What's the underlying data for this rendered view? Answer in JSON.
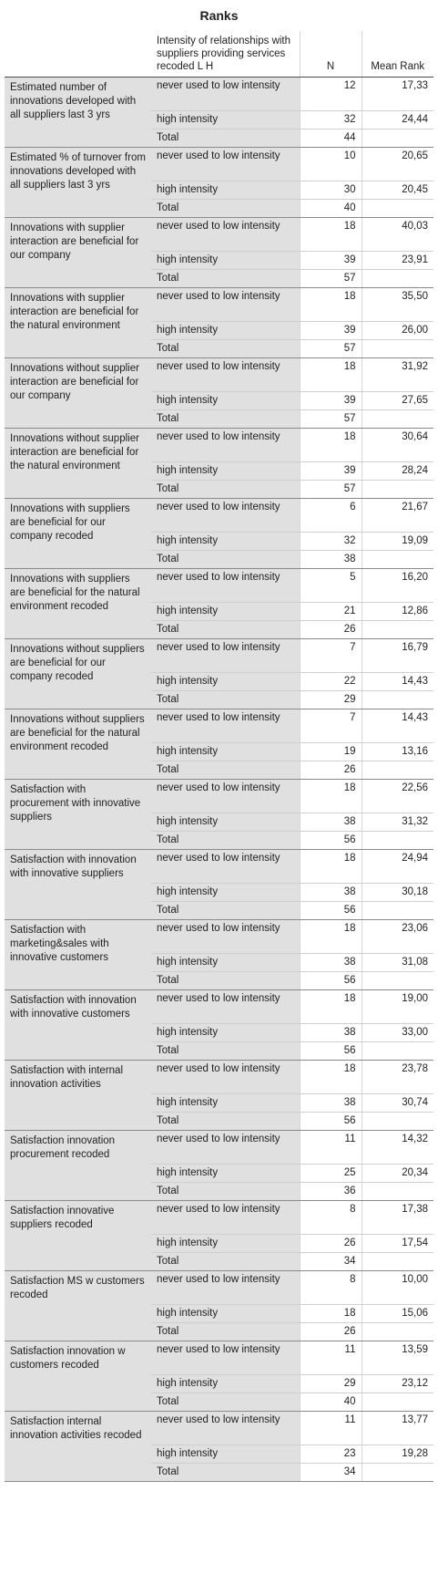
{
  "title": "Ranks",
  "headers": {
    "group": "Intensity of relationships with suppliers providing services recoded L H",
    "n": "N",
    "mean_rank": "Mean Rank"
  },
  "rows": [
    {
      "variable": "Estimated number of innovations developed with all suppliers last 3 yrs",
      "low_label": "never used to low intensity",
      "low_n": "12",
      "low_mr": "17,33",
      "high_label": "high intensity",
      "high_n": "32",
      "high_mr": "24,44",
      "total_label": "Total",
      "total_n": "44"
    },
    {
      "variable": "Estimated % of turnover from innovations developed with all suppliers last 3 yrs",
      "low_label": "never used to low intensity",
      "low_n": "10",
      "low_mr": "20,65",
      "high_label": "high intensity",
      "high_n": "30",
      "high_mr": "20,45",
      "total_label": "Total",
      "total_n": "40"
    },
    {
      "variable": "Innovations with supplier interaction are beneficial for our company",
      "low_label": "never used to low intensity",
      "low_n": "18",
      "low_mr": "40,03",
      "high_label": "high intensity",
      "high_n": "39",
      "high_mr": "23,91",
      "total_label": "Total",
      "total_n": "57"
    },
    {
      "variable": "Innovations with supplier interaction are beneficial for the natural environment",
      "low_label": "never used to low intensity",
      "low_n": "18",
      "low_mr": "35,50",
      "high_label": "high intensity",
      "high_n": "39",
      "high_mr": "26,00",
      "total_label": "Total",
      "total_n": "57"
    },
    {
      "variable": "Innovations without supplier interaction are beneficial for our company",
      "low_label": "never used to low intensity",
      "low_n": "18",
      "low_mr": "31,92",
      "high_label": "high intensity",
      "high_n": "39",
      "high_mr": "27,65",
      "total_label": "Total",
      "total_n": "57"
    },
    {
      "variable": "Innovations without supplier interaction are beneficial for the natural environment",
      "low_label": "never used to low intensity",
      "low_n": "18",
      "low_mr": "30,64",
      "high_label": "high intensity",
      "high_n": "39",
      "high_mr": "28,24",
      "total_label": "Total",
      "total_n": "57"
    },
    {
      "variable": "Innovations with suppliers are beneficial for our company recoded",
      "low_label": "never used to low intensity",
      "low_n": "6",
      "low_mr": "21,67",
      "high_label": "high intensity",
      "high_n": "32",
      "high_mr": "19,09",
      "total_label": "Total",
      "total_n": "38"
    },
    {
      "variable": "Innovations with suppliers are beneficial for the natural environment recoded",
      "low_label": "never used to low intensity",
      "low_n": "5",
      "low_mr": "16,20",
      "high_label": "high intensity",
      "high_n": "21",
      "high_mr": "12,86",
      "total_label": "Total",
      "total_n": "26"
    },
    {
      "variable": "Innovations without suppliers are beneficial for our company recoded",
      "low_label": "never used to low intensity",
      "low_n": "7",
      "low_mr": "16,79",
      "high_label": "high intensity",
      "high_n": "22",
      "high_mr": "14,43",
      "total_label": "Total",
      "total_n": "29"
    },
    {
      "variable": "Innovations without suppliers are beneficial for the natural environment recoded",
      "low_label": "never used to low intensity",
      "low_n": "7",
      "low_mr": "14,43",
      "high_label": "high intensity",
      "high_n": "19",
      "high_mr": "13,16",
      "total_label": "Total",
      "total_n": "26"
    },
    {
      "variable": "Satisfaction with procurement with innovative suppliers",
      "low_label": "never used to low intensity",
      "low_n": "18",
      "low_mr": "22,56",
      "high_label": "high intensity",
      "high_n": "38",
      "high_mr": "31,32",
      "total_label": "Total",
      "total_n": "56"
    },
    {
      "variable": "Satisfaction with innovation with innovative suppliers",
      "low_label": "never used to low intensity",
      "low_n": "18",
      "low_mr": "24,94",
      "high_label": "high intensity",
      "high_n": "38",
      "high_mr": "30,18",
      "total_label": "Total",
      "total_n": "56"
    },
    {
      "variable": "Satisfaction with marketing&sales with innovative customers",
      "low_label": "never used to low intensity",
      "low_n": "18",
      "low_mr": "23,06",
      "high_label": "high intensity",
      "high_n": "38",
      "high_mr": "31,08",
      "total_label": "Total",
      "total_n": "56"
    },
    {
      "variable": "Satisfaction with innovation with innovative customers",
      "low_label": "never used to low intensity",
      "low_n": "18",
      "low_mr": "19,00",
      "high_label": "high intensity",
      "high_n": "38",
      "high_mr": "33,00",
      "total_label": "Total",
      "total_n": "56"
    },
    {
      "variable": "Satisfaction with internal innovation activities",
      "low_label": "never used to low intensity",
      "low_n": "18",
      "low_mr": "23,78",
      "high_label": "high intensity",
      "high_n": "38",
      "high_mr": "30,74",
      "total_label": "Total",
      "total_n": "56"
    },
    {
      "variable": "Satisfaction innovation procurement recoded",
      "low_label": "never used to low intensity",
      "low_n": "11",
      "low_mr": "14,32",
      "high_label": "high intensity",
      "high_n": "25",
      "high_mr": "20,34",
      "total_label": "Total",
      "total_n": "36"
    },
    {
      "variable": "Satisfaction innovative suppliers recoded",
      "low_label": "never used to low intensity",
      "low_n": "8",
      "low_mr": "17,38",
      "high_label": "high intensity",
      "high_n": "26",
      "high_mr": "17,54",
      "total_label": "Total",
      "total_n": "34"
    },
    {
      "variable": "Satisfaction MS w customers recoded",
      "low_label": "never used to low intensity",
      "low_n": "8",
      "low_mr": "10,00",
      "high_label": "high intensity",
      "high_n": "18",
      "high_mr": "15,06",
      "total_label": "Total",
      "total_n": "26"
    },
    {
      "variable": "Satisfaction innovation w customers recoded",
      "low_label": "never used to low intensity",
      "low_n": "11",
      "low_mr": "13,59",
      "high_label": "high intensity",
      "high_n": "29",
      "high_mr": "23,12",
      "total_label": "Total",
      "total_n": "40"
    },
    {
      "variable": "Satisfaction internal innovation activities recoded",
      "low_label": "never used to low intensity",
      "low_n": "11",
      "low_mr": "13,77",
      "high_label": "high intensity",
      "high_n": "23",
      "high_mr": "19,28",
      "total_label": "Total",
      "total_n": "34"
    }
  ]
}
